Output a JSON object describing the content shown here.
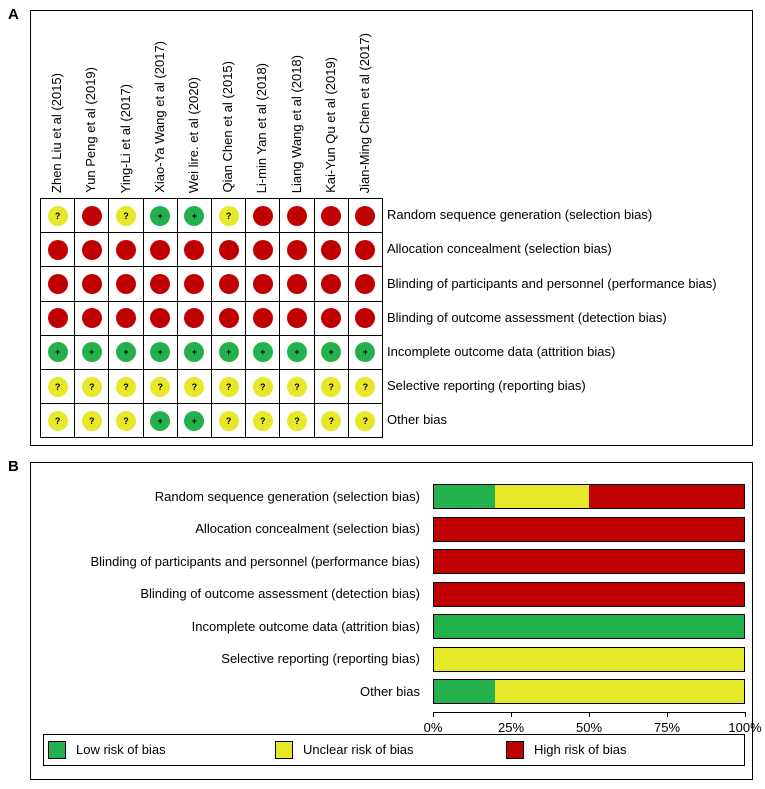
{
  "panel_a": {
    "letter": "A",
    "studies": [
      "Zhen Liu et al (2015)",
      "Yun Peng et al (2019)",
      "Ying-Li et al (2017)",
      "Xiao-Ya Wang et al (2017)",
      "Wei lire. et al (2020)",
      "Qian Chen et al (2015)",
      "Li-min Yan et al (2018)",
      "Liang Wang et al (2018)",
      "Kai-Yun Qu et al (2019)",
      "Jian-Ming Chen et al (2017)"
    ],
    "domains": [
      "Random sequence generation (selection bias)",
      "Allocation concealment (selection bias)",
      "Blinding of participants and personnel (performance bias)",
      "Blinding of outcome assessment (detection bias)",
      "Incomplete outcome data (attrition bias)",
      "Selective reporting (reporting bias)",
      "Other bias"
    ],
    "symbols": {
      "low": "+",
      "unclear": "?",
      "high": ""
    },
    "judgements": [
      [
        "unclear",
        "high",
        "unclear",
        "low",
        "low",
        "unclear",
        "high",
        "high",
        "high",
        "high"
      ],
      [
        "high",
        "high",
        "high",
        "high",
        "high",
        "high",
        "high",
        "high",
        "high",
        "high"
      ],
      [
        "high",
        "high",
        "high",
        "high",
        "high",
        "high",
        "high",
        "high",
        "high",
        "high"
      ],
      [
        "high",
        "high",
        "high",
        "high",
        "high",
        "high",
        "high",
        "high",
        "high",
        "high"
      ],
      [
        "low",
        "low",
        "low",
        "low",
        "low",
        "low",
        "low",
        "low",
        "low",
        "low"
      ],
      [
        "unclear",
        "unclear",
        "unclear",
        "unclear",
        "unclear",
        "unclear",
        "unclear",
        "unclear",
        "unclear",
        "unclear"
      ],
      [
        "unclear",
        "unclear",
        "unclear",
        "low",
        "low",
        "unclear",
        "unclear",
        "unclear",
        "unclear",
        "unclear"
      ]
    ]
  },
  "panel_b": {
    "letter": "B"
  },
  "chart_data": {
    "type": "bar",
    "orientation": "horizontal-stacked-100",
    "categories": [
      "Random sequence generation (selection bias)",
      "Allocation concealment (selection bias)",
      "Blinding of participants and personnel (performance bias)",
      "Blinding of outcome assessment (detection bias)",
      "Incomplete outcome data (attrition bias)",
      "Selective reporting (reporting bias)",
      "Other bias"
    ],
    "series": [
      {
        "name": "Low risk of bias",
        "color": "#22b14c",
        "values": [
          20,
          0,
          0,
          0,
          100,
          0,
          20
        ]
      },
      {
        "name": "Unclear risk of bias",
        "color": "#e8e82a",
        "values": [
          30,
          0,
          0,
          0,
          0,
          100,
          80
        ]
      },
      {
        "name": "High risk of bias",
        "color": "#c00000",
        "values": [
          50,
          100,
          100,
          100,
          0,
          0,
          0
        ]
      }
    ],
    "xticks": [
      "0%",
      "25%",
      "50%",
      "75%",
      "100%"
    ],
    "xlim": [
      0,
      100
    ],
    "legend": "bottom"
  },
  "colors": {
    "low": "#22b14c",
    "unclear": "#e8e82a",
    "high": "#c00000"
  }
}
